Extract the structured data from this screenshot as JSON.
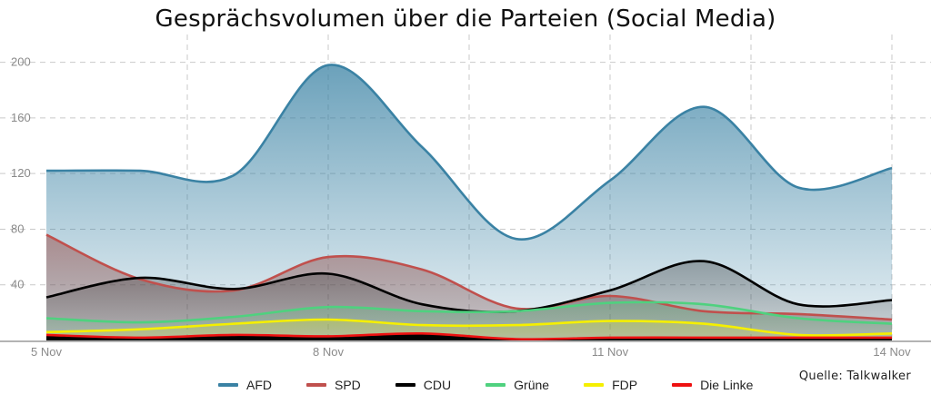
{
  "chart_data": {
    "type": "area",
    "title": "Gesprächsvolumen über die Parteien (Social Media)",
    "source": "Quelle: Talkwalker",
    "x": [
      "5 Nov",
      "6 Nov",
      "7 Nov",
      "8 Nov",
      "9 Nov",
      "10 Nov",
      "11 Nov",
      "12 Nov",
      "13 Nov",
      "14 Nov"
    ],
    "x_tick_labels": [
      "5 Nov",
      "8 Nov",
      "11 Nov",
      "14 Nov"
    ],
    "y_tick_labels": [
      "40",
      "80",
      "120",
      "160",
      "200"
    ],
    "ylim": [
      0,
      220
    ],
    "grid": true,
    "legend": "bottom",
    "series": [
      {
        "name": "AFD",
        "color": "#3a82a4",
        "values": [
          122,
          122,
          119,
          198,
          139,
          73,
          115,
          168,
          110,
          124
        ]
      },
      {
        "name": "SPD",
        "color": "#c0504d",
        "values": [
          76,
          44,
          36,
          60,
          51,
          23,
          32,
          21,
          19,
          15
        ]
      },
      {
        "name": "CDU",
        "color": "#000000",
        "values": [
          31,
          45,
          37,
          48,
          26,
          21,
          36,
          57,
          26,
          29
        ]
      },
      {
        "name": "Grüne",
        "color": "#4fd17f",
        "values": [
          16,
          13,
          17,
          24,
          21,
          21,
          27,
          26,
          16,
          12
        ]
      },
      {
        "name": "FDP",
        "color": "#f5ef00",
        "values": [
          6,
          8,
          12,
          15,
          11,
          11,
          14,
          12,
          4,
          5
        ]
      },
      {
        "name": "Die Linke",
        "color": "#ee1111",
        "values": [
          4,
          2,
          4,
          3,
          5,
          1,
          2,
          2,
          2,
          2
        ]
      }
    ]
  }
}
